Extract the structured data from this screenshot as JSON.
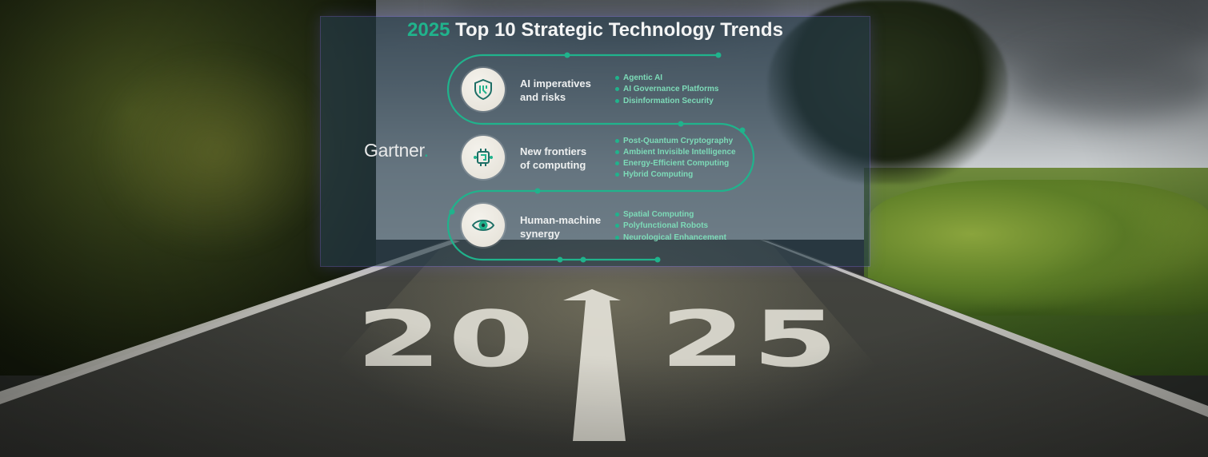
{
  "title": {
    "year": "2025",
    "rest": " Top 10 Strategic Technology Trends"
  },
  "brand": {
    "name": "Gartner",
    "dot": "."
  },
  "groups": [
    {
      "title_line1": "AI imperatives",
      "title_line2": "and risks",
      "icon": "shield-chip-icon",
      "trends": [
        "Agentic AI",
        "AI Governance Platforms",
        "Disinformation Security"
      ]
    },
    {
      "title_line1": "New frontiers",
      "title_line2": "of computing",
      "icon": "processor-icon",
      "trends": [
        "Post-Quantum Cryptography",
        "Ambient Invisible Intelligence",
        "Energy-Efficient Computing",
        "Hybrid Computing"
      ]
    },
    {
      "title_line1": "Human-machine",
      "title_line2": "synergy",
      "icon": "eye-icon",
      "trends": [
        "Spatial Computing",
        "Polyfunctional Robots",
        "Neurological Enhancement"
      ]
    }
  ],
  "road_marking": "2025",
  "colors": {
    "accent": "#20b38c",
    "trend_text": "#7ddbb8",
    "panel": "#263e4e"
  }
}
